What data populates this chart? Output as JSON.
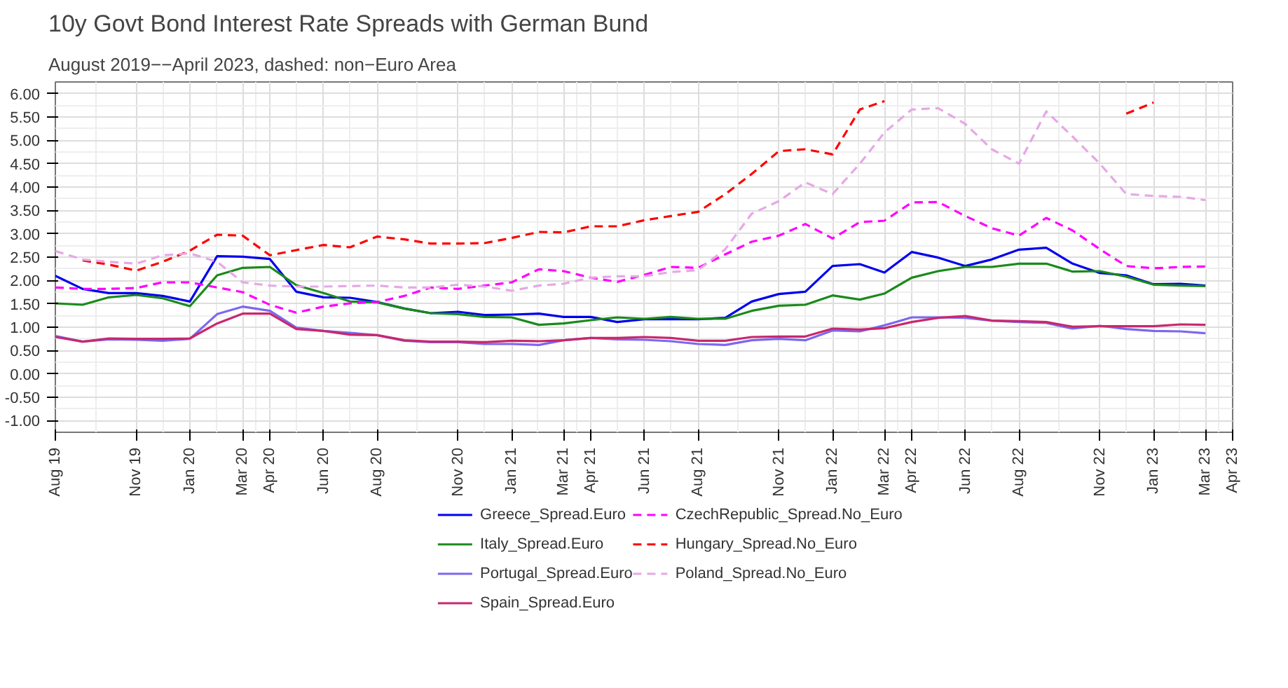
{
  "chart_data": {
    "type": "line",
    "title": "10y Govt Bond Interest Rate Spreads with German Bund",
    "subtitle": "August 2019−−April 2023, dashed: non−Euro Area",
    "x": [
      "2019-08",
      "2019-09",
      "2019-10",
      "2019-11",
      "2019-12",
      "2020-01",
      "2020-02",
      "2020-03",
      "2020-04",
      "2020-05",
      "2020-06",
      "2020-07",
      "2020-08",
      "2020-09",
      "2020-10",
      "2020-11",
      "2020-12",
      "2021-01",
      "2021-02",
      "2021-03",
      "2021-04",
      "2021-05",
      "2021-06",
      "2021-07",
      "2021-08",
      "2021-09",
      "2021-10",
      "2021-11",
      "2021-12",
      "2022-01",
      "2022-02",
      "2022-03",
      "2022-04",
      "2022-05",
      "2022-06",
      "2022-07",
      "2022-08",
      "2022-09",
      "2022-10",
      "2022-11",
      "2022-12",
      "2023-01",
      "2023-02",
      "2023-03"
    ],
    "series": [
      {
        "name": "Greece_Spread.Euro",
        "color": "#0000ee",
        "line_style": "solid",
        "values": [
          2.1,
          1.82,
          1.73,
          1.73,
          1.67,
          1.55,
          2.52,
          2.51,
          2.46,
          1.76,
          1.64,
          1.63,
          1.54,
          1.4,
          1.3,
          1.33,
          1.26,
          1.27,
          1.29,
          1.22,
          1.22,
          1.11,
          1.17,
          1.17,
          1.17,
          1.2,
          1.55,
          1.71,
          1.76,
          2.31,
          2.35,
          2.17,
          2.61,
          2.49,
          2.31,
          2.45,
          2.66,
          2.7,
          2.36,
          2.16,
          2.11,
          1.92,
          1.93,
          1.89
        ]
      },
      {
        "name": "Italy_Spread.Euro",
        "color": "#1a8a1a",
        "line_style": "solid",
        "values": [
          1.51,
          1.48,
          1.64,
          1.69,
          1.62,
          1.45,
          2.11,
          2.27,
          2.29,
          1.9,
          1.73,
          1.55,
          1.53,
          1.4,
          1.3,
          1.28,
          1.22,
          1.21,
          1.05,
          1.08,
          1.15,
          1.21,
          1.18,
          1.22,
          1.18,
          1.18,
          1.35,
          1.46,
          1.48,
          1.68,
          1.59,
          1.72,
          2.06,
          2.2,
          2.29,
          2.29,
          2.36,
          2.36,
          2.19,
          2.2,
          2.08,
          1.91,
          1.89,
          1.88
        ]
      },
      {
        "name": "Portugal_Spread.Euro",
        "color": "#7b68ee",
        "line_style": "solid",
        "values": [
          0.81,
          0.69,
          0.74,
          0.73,
          0.71,
          0.75,
          1.28,
          1.44,
          1.35,
          0.99,
          0.92,
          0.88,
          0.83,
          0.71,
          0.68,
          0.68,
          0.64,
          0.64,
          0.62,
          0.72,
          0.77,
          0.74,
          0.73,
          0.7,
          0.64,
          0.62,
          0.72,
          0.75,
          0.72,
          0.93,
          0.91,
          1.04,
          1.21,
          1.21,
          1.2,
          1.14,
          1.11,
          1.09,
          0.97,
          1.03,
          0.96,
          0.92,
          0.91,
          0.87
        ]
      },
      {
        "name": "Spain_Spread.Euro",
        "color": "#c8286e",
        "line_style": "solid",
        "values": [
          0.79,
          0.69,
          0.76,
          0.75,
          0.75,
          0.76,
          1.08,
          1.29,
          1.29,
          0.96,
          0.92,
          0.84,
          0.83,
          0.72,
          0.69,
          0.69,
          0.68,
          0.71,
          0.7,
          0.72,
          0.77,
          0.77,
          0.79,
          0.77,
          0.71,
          0.71,
          0.79,
          0.8,
          0.8,
          0.97,
          0.95,
          0.98,
          1.11,
          1.2,
          1.24,
          1.14,
          1.13,
          1.11,
          1.01,
          1.02,
          1.02,
          1.02,
          1.06,
          1.05
        ]
      },
      {
        "name": "CzechRepublic_Spread.No_Euro",
        "color": "#ff00ff",
        "line_style": "dashed",
        "values": [
          1.85,
          1.82,
          1.82,
          1.84,
          1.96,
          1.96,
          1.85,
          1.75,
          1.48,
          1.31,
          1.44,
          1.51,
          1.54,
          1.67,
          1.85,
          1.82,
          1.89,
          1.96,
          2.24,
          2.2,
          2.06,
          1.97,
          2.12,
          2.29,
          2.27,
          2.56,
          2.83,
          2.96,
          3.21,
          2.9,
          3.25,
          3.28,
          3.67,
          3.68,
          3.38,
          3.12,
          2.96,
          3.34,
          3.07,
          2.67,
          2.31,
          2.26,
          2.29,
          2.3
        ]
      },
      {
        "name": "Hungary_Spread.No_Euro",
        "color": "#ff0000",
        "line_style": "dashed",
        "values": [
          null,
          2.43,
          2.34,
          2.21,
          2.4,
          2.64,
          2.98,
          2.96,
          2.54,
          2.65,
          2.76,
          2.71,
          2.94,
          2.88,
          2.79,
          2.79,
          2.8,
          2.91,
          3.04,
          3.03,
          3.16,
          3.16,
          3.29,
          3.38,
          3.47,
          3.85,
          4.28,
          4.77,
          4.81,
          4.7,
          5.66,
          5.84,
          null,
          null,
          null,
          null,
          null,
          null,
          null,
          null,
          5.57,
          5.81,
          null,
          null
        ]
      },
      {
        "name": "Poland_Spread.No_Euro",
        "color": "#e6a8e6",
        "line_style": "dashed",
        "values": [
          2.63,
          2.45,
          2.4,
          2.36,
          2.54,
          2.58,
          2.4,
          1.96,
          1.89,
          1.87,
          1.87,
          1.88,
          1.89,
          1.85,
          1.85,
          1.91,
          1.87,
          1.78,
          1.89,
          1.93,
          2.06,
          2.09,
          2.09,
          2.18,
          2.22,
          2.67,
          3.43,
          3.7,
          4.1,
          3.85,
          4.5,
          5.17,
          5.66,
          5.69,
          5.35,
          4.81,
          4.5,
          5.62,
          5.08,
          4.5,
          3.85,
          3.81,
          3.79,
          3.72
        ]
      }
    ],
    "xlim": [
      "2019-08-01",
      "2023-04-01"
    ],
    "xticks": [
      {
        "value": "2019-08-01",
        "label": "Aug 19"
      },
      {
        "value": "2019-11-01",
        "label": "Nov 19"
      },
      {
        "value": "2020-01-01",
        "label": "Jan 20"
      },
      {
        "value": "2020-03-01",
        "label": "Mar 20"
      },
      {
        "value": "2020-04-01",
        "label": "Apr 20"
      },
      {
        "value": "2020-06-01",
        "label": "Jun 20"
      },
      {
        "value": "2020-08-01",
        "label": "Aug 20"
      },
      {
        "value": "2020-11-01",
        "label": "Nov 20"
      },
      {
        "value": "2021-01-01",
        "label": "Jan 21"
      },
      {
        "value": "2021-03-01",
        "label": "Mar 21"
      },
      {
        "value": "2021-04-01",
        "label": "Apr 21"
      },
      {
        "value": "2021-06-01",
        "label": "Jun 21"
      },
      {
        "value": "2021-08-01",
        "label": "Aug 21"
      },
      {
        "value": "2021-11-01",
        "label": "Nov 21"
      },
      {
        "value": "2022-01-01",
        "label": "Jan 22"
      },
      {
        "value": "2022-03-01",
        "label": "Mar 22"
      },
      {
        "value": "2022-04-01",
        "label": "Apr 22"
      },
      {
        "value": "2022-06-01",
        "label": "Jun 22"
      },
      {
        "value": "2022-08-01",
        "label": "Aug 22"
      },
      {
        "value": "2022-11-01",
        "label": "Nov 22"
      },
      {
        "value": "2023-01-01",
        "label": "Jan 23"
      },
      {
        "value": "2023-03-01",
        "label": "Mar 23"
      },
      {
        "value": "2023-04-01",
        "label": "Apr 23"
      }
    ],
    "ylim": [
      -1.25,
      6.25
    ],
    "yticks": [
      {
        "value": -1,
        "label": "-1.00"
      },
      {
        "value": -0.5,
        "label": "-0.50"
      },
      {
        "value": 0,
        "label": "0.00"
      },
      {
        "value": 0.5,
        "label": "0.50"
      },
      {
        "value": 1,
        "label": "1.00"
      },
      {
        "value": 1.5,
        "label": "1.50"
      },
      {
        "value": 2,
        "label": "2.00"
      },
      {
        "value": 2.5,
        "label": "2.50"
      },
      {
        "value": 3,
        "label": "3.00"
      },
      {
        "value": 3.5,
        "label": "3.50"
      },
      {
        "value": 4,
        "label": "4.00"
      },
      {
        "value": 4.5,
        "label": "4.50"
      },
      {
        "value": 5,
        "label": "5.00"
      },
      {
        "value": 5.5,
        "label": "5.50"
      },
      {
        "value": 6,
        "label": "6.00"
      }
    ],
    "grid": true,
    "legend": "bottom"
  }
}
